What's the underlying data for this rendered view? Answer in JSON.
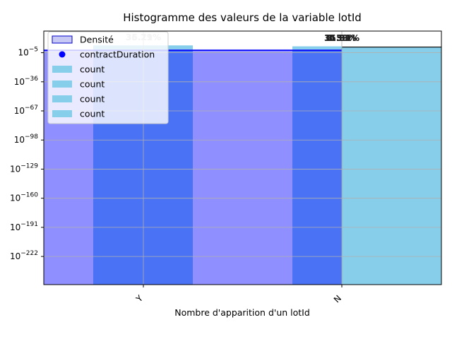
{
  "chart_data": {
    "type": "bar",
    "title": "Histogramme des valeurs de la variable lotId",
    "xlabel": "Nombre d'apparition d'un lotId",
    "ylabel": "",
    "yscale": "log",
    "categories": [
      "Y",
      "N"
    ],
    "ytick_labels": [
      {
        "base": "10",
        "exp": "−5",
        "log10": -5
      },
      {
        "base": "10",
        "exp": "−36",
        "log10": -36
      },
      {
        "base": "10",
        "exp": "−67",
        "log10": -67
      },
      {
        "base": "10",
        "exp": "−98",
        "log10": -98
      },
      {
        "base": "10",
        "exp": "−129",
        "log10": -129
      },
      {
        "base": "10",
        "exp": "−160",
        "log10": -160
      },
      {
        "base": "10",
        "exp": "−191",
        "log10": -191
      },
      {
        "base": "10",
        "exp": "−222",
        "log10": -222
      }
    ],
    "ylim_log10": [
      -252,
      18
    ],
    "grid": true,
    "legend_position": "upper-left",
    "legend": [
      {
        "label": "Densité",
        "kind": "patch",
        "color": "#c8c8f4",
        "edge": "#0000cc"
      },
      {
        "label": "contractDuration",
        "kind": "point",
        "color": "#0000ff"
      },
      {
        "label": "count",
        "kind": "patch",
        "color": "#87ceeb"
      },
      {
        "label": "count",
        "kind": "patch",
        "color": "#87ceeb"
      },
      {
        "label": "count",
        "kind": "patch",
        "color": "#87ceeb"
      },
      {
        "label": "count",
        "kind": "patch",
        "color": "#87ceeb"
      }
    ],
    "series": [
      {
        "name": "Densité",
        "color": "#8f8fff",
        "values_log10": [
          -1.5,
          -1.5
        ]
      },
      {
        "name": "count",
        "color": "#4a72f5",
        "values_log10": [
          -1.5,
          -1.5
        ]
      },
      {
        "name": "count",
        "color": "#87ceeb",
        "values_log10": [
          2.0,
          1.0
        ]
      },
      {
        "name": "contractDuration",
        "color": "#0000ff",
        "values_log10": [
          -2.5,
          -2.5
        ]
      }
    ],
    "percent_labels": [
      {
        "category": "Y",
        "texts": [
          "35.19%",
          "36.21%",
          "36.71%"
        ],
        "style": "light"
      },
      {
        "category": "N",
        "texts": [
          "3.58%",
          "1.39%",
          "31.31%",
          "15.89%"
        ],
        "style": "dark"
      }
    ],
    "colors": {
      "densite_bar": "#8f8fff",
      "blue_bar": "#4a72f5",
      "skyblue": "#87ceeb",
      "line": "#0000ff",
      "grid": "#b0b0b0"
    }
  }
}
